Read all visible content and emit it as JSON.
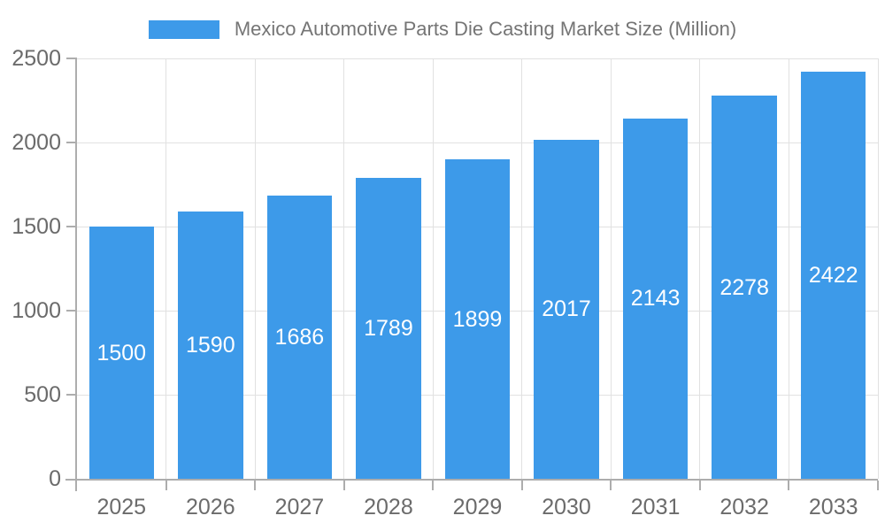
{
  "chart_data": {
    "type": "bar",
    "title": "Mexico Automotive Parts Die Casting Market Size (Million)",
    "legend": {
      "position": "top",
      "label": "Mexico Automotive Parts Die Casting Market Size (Million)"
    },
    "categories": [
      "2025",
      "2026",
      "2027",
      "2028",
      "2029",
      "2030",
      "2031",
      "2032",
      "2033"
    ],
    "values": [
      1500,
      1590,
      1686,
      1789,
      1899,
      2017,
      2143,
      2278,
      2422
    ],
    "xlabel": "",
    "ylabel": "",
    "ylim": [
      0,
      2500
    ],
    "y_ticks": [
      0,
      500,
      1000,
      1500,
      2000,
      2500
    ],
    "grid": true,
    "value_labels_position": "inside-center",
    "colors": {
      "bar": "#3D9AE9",
      "value_label": "#FFFFFF",
      "axis_text": "#6B6B6B",
      "title_text": "#757575",
      "gridline": "#E1E1E1",
      "axis_line": "#ADADAD",
      "background": "#FFFFFF"
    }
  }
}
